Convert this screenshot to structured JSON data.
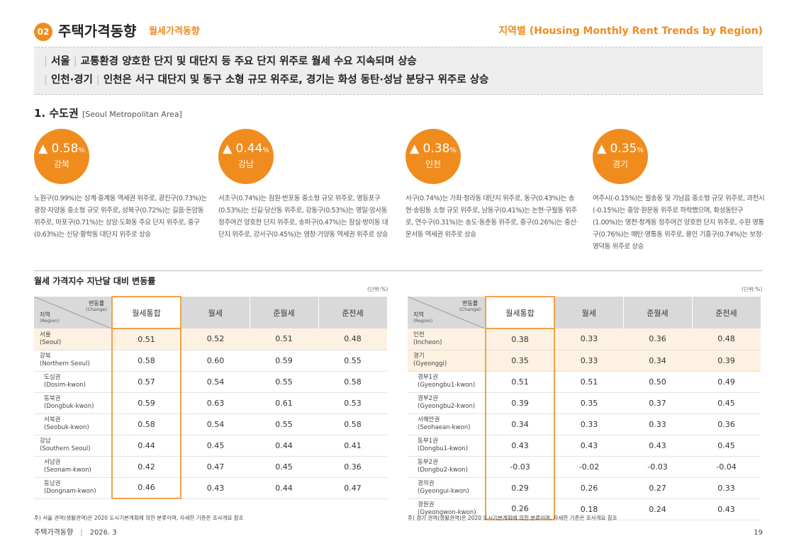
{
  "header": {
    "badge": "02",
    "title": "주택가격동향",
    "subtitle": "월세가격동향",
    "right_title": "지역별 (Housing Monthly Rent Trends by Region)"
  },
  "summary": {
    "line1": {
      "bar1": "|",
      "region": "서울",
      "bar2": "|",
      "text": "교통환경 양호한 단지 및 대단지 등 주요 단지 위주로 월세 수요 지속되며 상승"
    },
    "line2": {
      "bar1": "|",
      "region": "인천·경기",
      "bar2": "|",
      "text": "인천은 서구 대단지 및 동구 소형 규모 위주로, 경기는 화성 동탄·성남 분당구 위주로 상승"
    }
  },
  "section": {
    "title": "1. 수도권",
    "en": "[Seoul Metropolitan Area]"
  },
  "cards": [
    {
      "arrow": "▲",
      "value": "0.58",
      "unit": "%",
      "region": "강북",
      "text": "노원구(0.99%)는 상계·중계동 역세권 위주로, 광진구(0.73%)는 광장·자양동 중소형 규모 위주로, 성북구(0.72%)는 길음·돈암동 위주로, 마포구(0.71%)는 상암·도화동 주요 단지 위주로, 중구(0.63%)는 신당·황학동 대단지 위주로 상승"
    },
    {
      "arrow": "▲",
      "value": "0.44",
      "unit": "%",
      "region": "강남",
      "text": "서초구(0.74%)는 잠원·반포동 중소형 규모 위주로, 영등포구(0.53%)는 신길·당산동 위주로, 강동구(0.53%)는 명일·암사동 정주여건 양호한 단지 위주로, 송파구(0.47%)는 잠실·방이동 대단지 위주로, 강서구(0.45%)는 염창·가양동 역세권 위주로 상승"
    },
    {
      "arrow": "▲",
      "value": "0.38",
      "unit": "%",
      "region": "인천",
      "text": "서구(0.74%)는 가좌·청라동 대단지 위주로, 동구(0.43%)는 송현·송림동 소형 규모 위주로, 남동구(0.41%)는 논현·구월동 위주로, 연수구(0.31%)는 송도·동춘동 위주로, 중구(0.26%)는 중산·운서동 역세권 위주로 상승"
    },
    {
      "arrow": "▲",
      "value": "0.35",
      "unit": "%",
      "region": "경기",
      "text": "여주시(-0.15%)는 월송동 및 가남읍 중소형 규모 위주로, 과천시(-0.15%)는 중앙·원문동 위주로 하락했으며, 화성동탄구(1.00%)는 영천·청계동 정주여건 양호한 단지 위주로, 수원 영통구(0.76%)는 매탄·영통동 위주로, 용인 기흥구(0.74%)는 보정·영덕동 위주로 상승"
    }
  ],
  "table_title": "월세 가격지수 지난달 대비 변동률",
  "unit_label": "(단위:%)",
  "corner": {
    "change_ko": "변동률",
    "change_en": "(Change)",
    "region_ko": "지역",
    "region_en": "(Region)"
  },
  "columns": [
    "월세통합",
    "월세",
    "준월세",
    "준전세"
  ],
  "table_left": [
    {
      "ko": "서울",
      "en": "(Seoul)",
      "values": [
        "0.51",
        "0.52",
        "0.51",
        "0.48"
      ],
      "highlight": true,
      "sub": false
    },
    {
      "ko": "강북",
      "en": "(Northern Seoul)",
      "values": [
        "0.58",
        "0.60",
        "0.59",
        "0.55"
      ],
      "highlight": false,
      "sub": false
    },
    {
      "ko": "도심권",
      "en": "(Dosim-kwon)",
      "values": [
        "0.57",
        "0.54",
        "0.55",
        "0.58"
      ],
      "highlight": false,
      "sub": true
    },
    {
      "ko": "동북권",
      "en": "(Dongbuk-kwon)",
      "values": [
        "0.59",
        "0.63",
        "0.61",
        "0.53"
      ],
      "highlight": false,
      "sub": true
    },
    {
      "ko": "서북권",
      "en": "(Seobuk-kwon)",
      "values": [
        "0.58",
        "0.54",
        "0.55",
        "0.58"
      ],
      "highlight": false,
      "sub": true
    },
    {
      "ko": "강남",
      "en": "(Southern Seoul)",
      "values": [
        "0.44",
        "0.45",
        "0.44",
        "0.41"
      ],
      "highlight": false,
      "sub": false
    },
    {
      "ko": "서남권",
      "en": "(Seonam-kwon)",
      "values": [
        "0.42",
        "0.47",
        "0.45",
        "0.36"
      ],
      "highlight": false,
      "sub": true
    },
    {
      "ko": "동남권",
      "en": "(Dongnam-kwon)",
      "values": [
        "0.46",
        "0.43",
        "0.44",
        "0.47"
      ],
      "highlight": false,
      "sub": true
    }
  ],
  "table_right": [
    {
      "ko": "인천",
      "en": "(Incheon)",
      "values": [
        "0.38",
        "0.33",
        "0.36",
        "0.48"
      ],
      "highlight": true,
      "sub": false
    },
    {
      "ko": "경기",
      "en": "(Gyeonggi)",
      "values": [
        "0.35",
        "0.33",
        "0.34",
        "0.39"
      ],
      "highlight": true,
      "sub": false
    },
    {
      "ko": "경부1권",
      "en": "(Gyeongbu1-kwon)",
      "values": [
        "0.51",
        "0.51",
        "0.50",
        "0.49"
      ],
      "highlight": false,
      "sub": true
    },
    {
      "ko": "경부2권",
      "en": "(Gyeongbu2-kwon)",
      "values": [
        "0.39",
        "0.35",
        "0.37",
        "0.45"
      ],
      "highlight": false,
      "sub": true
    },
    {
      "ko": "서해안권",
      "en": "(Seohaean-kwon)",
      "values": [
        "0.34",
        "0.33",
        "0.33",
        "0.36"
      ],
      "highlight": false,
      "sub": true
    },
    {
      "ko": "동부1권",
      "en": "(Dongbu1-kwon)",
      "values": [
        "0.43",
        "0.43",
        "0.43",
        "0.45"
      ],
      "highlight": false,
      "sub": true
    },
    {
      "ko": "동부2권",
      "en": "(Dongbu2-kwon)",
      "values": [
        "-0.03",
        "-0.02",
        "-0.03",
        "-0.04"
      ],
      "highlight": false,
      "sub": true
    },
    {
      "ko": "경의권",
      "en": "(Gyeongui-kwon)",
      "values": [
        "0.29",
        "0.26",
        "0.27",
        "0.33"
      ],
      "highlight": false,
      "sub": true
    },
    {
      "ko": "경원권",
      "en": "(Gyeongwon-kwon)",
      "values": [
        "0.26",
        "0.18",
        "0.24",
        "0.43"
      ],
      "highlight": false,
      "sub": true
    }
  ],
  "note_left": "주) 서울 권역(생활권역)은 2020 도시기본계획에 의한 분류이며, 자세한 기준은 조사개요 참조",
  "note_right": "주) 경기 권역(생활권역)은 2020 도시기본계획에 의한 분류이며, 자세한 기준은 조사개요 참조",
  "footer": {
    "left": "주택가격동향",
    "sep": "|",
    "date": "2026. 3",
    "page": "19"
  },
  "colors": {
    "accent": "#f08c1e",
    "highlight_row": "#fdf1e1",
    "header_gray": "#d9d9d9"
  }
}
